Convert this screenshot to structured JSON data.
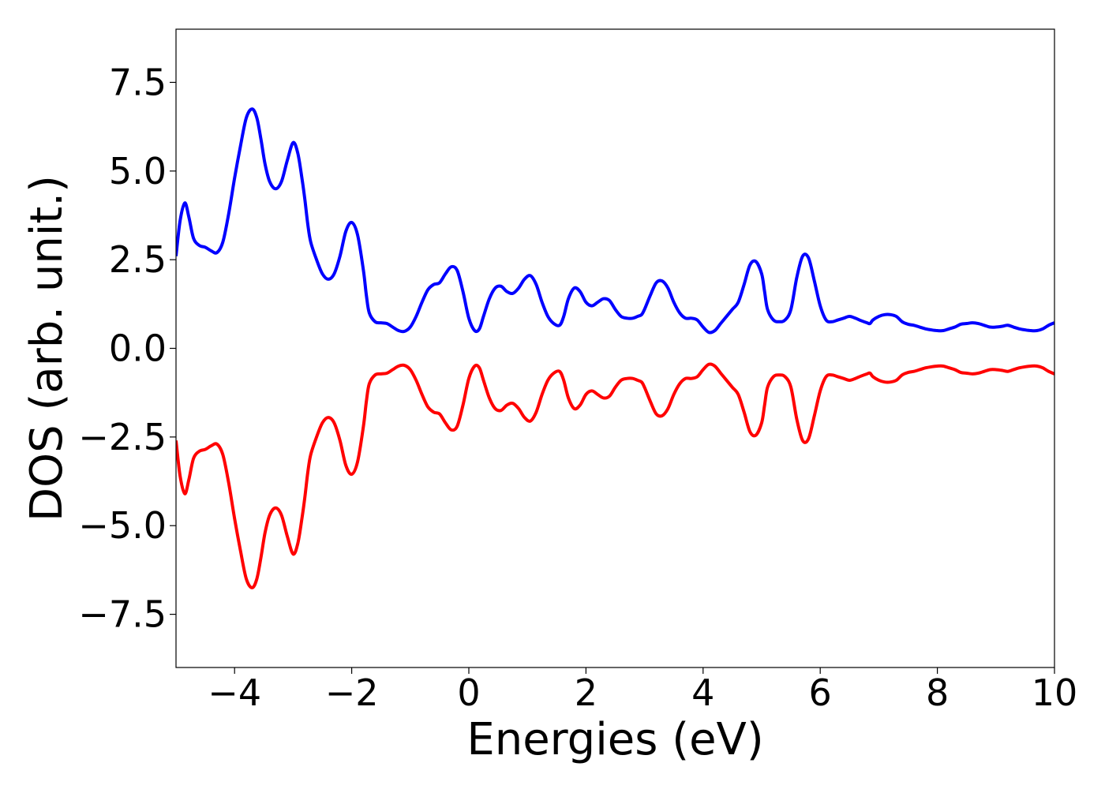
{
  "chart_data": {
    "type": "line",
    "title": "",
    "xlabel": "Energies (eV)",
    "ylabel": "DOS (arb. unit.)",
    "xlim": [
      -5,
      10
    ],
    "ylim": [
      -9,
      9
    ],
    "grid": false,
    "legend": "none",
    "x_ticks": [
      -4,
      -2,
      0,
      2,
      4,
      6,
      8,
      10
    ],
    "x_tick_labels": [
      "−4",
      "−2",
      "0",
      "2",
      "4",
      "6",
      "8",
      "10"
    ],
    "y_ticks": [
      -7.5,
      -5.0,
      -2.5,
      0.0,
      2.5,
      5.0,
      7.5
    ],
    "y_tick_labels": [
      "−7.5",
      "−5.0",
      "−2.5",
      "0.0",
      "2.5",
      "5.0",
      "7.5"
    ],
    "series": [
      {
        "color": "#0000ff",
        "x": [
          -5.0,
          -4.93,
          -4.85,
          -4.78,
          -4.7,
          -4.6,
          -4.5,
          -4.4,
          -4.3,
          -4.2,
          -4.1,
          -4.0,
          -3.9,
          -3.8,
          -3.7,
          -3.62,
          -3.55,
          -3.48,
          -3.4,
          -3.3,
          -3.2,
          -3.1,
          -3.0,
          -2.92,
          -2.85,
          -2.8,
          -2.75,
          -2.7,
          -2.6,
          -2.5,
          -2.4,
          -2.3,
          -2.2,
          -2.1,
          -2.0,
          -1.9,
          -1.8,
          -1.75,
          -1.7,
          -1.6,
          -1.5,
          -1.4,
          -1.3,
          -1.2,
          -1.1,
          -1.0,
          -0.9,
          -0.8,
          -0.7,
          -0.6,
          -0.5,
          -0.4,
          -0.3,
          -0.2,
          -0.1,
          0.0,
          0.1,
          0.18,
          0.25,
          0.35,
          0.45,
          0.55,
          0.65,
          0.75,
          0.85,
          0.95,
          1.05,
          1.15,
          1.25,
          1.35,
          1.45,
          1.55,
          1.62,
          1.7,
          1.8,
          1.9,
          2.0,
          2.1,
          2.2,
          2.3,
          2.4,
          2.5,
          2.6,
          2.7,
          2.8,
          2.88,
          2.95,
          3.0,
          3.1,
          3.2,
          3.3,
          3.4,
          3.5,
          3.6,
          3.7,
          3.8,
          3.9,
          4.0,
          4.1,
          4.2,
          4.3,
          4.4,
          4.5,
          4.6,
          4.7,
          4.8,
          4.9,
          5.0,
          5.05,
          5.1,
          5.2,
          5.3,
          5.4,
          5.5,
          5.6,
          5.7,
          5.8,
          5.9,
          6.0,
          6.1,
          6.2,
          6.3,
          6.4,
          6.5,
          6.6,
          6.7,
          6.8,
          6.85,
          6.9,
          7.0,
          7.1,
          7.2,
          7.3,
          7.4,
          7.5,
          7.6,
          7.7,
          7.8,
          7.9,
          8.0,
          8.1,
          8.2,
          8.3,
          8.4,
          8.5,
          8.6,
          8.7,
          8.8,
          8.9,
          9.0,
          9.1,
          9.2,
          9.3,
          9.4,
          9.5,
          9.6,
          9.7,
          9.8,
          9.9,
          10.0
        ],
        "y": [
          2.6,
          3.6,
          4.1,
          3.7,
          3.1,
          2.9,
          2.85,
          2.75,
          2.7,
          3.0,
          3.8,
          4.8,
          5.7,
          6.5,
          6.75,
          6.5,
          5.9,
          5.2,
          4.7,
          4.5,
          4.7,
          5.3,
          5.8,
          5.5,
          4.8,
          4.2,
          3.5,
          3.0,
          2.5,
          2.1,
          1.95,
          2.1,
          2.6,
          3.3,
          3.55,
          3.2,
          2.2,
          1.5,
          1.0,
          0.75,
          0.72,
          0.7,
          0.6,
          0.5,
          0.48,
          0.6,
          0.9,
          1.3,
          1.65,
          1.8,
          1.85,
          2.1,
          2.3,
          2.2,
          1.6,
          0.85,
          0.5,
          0.55,
          0.9,
          1.4,
          1.7,
          1.75,
          1.6,
          1.55,
          1.7,
          1.95,
          2.05,
          1.8,
          1.3,
          0.9,
          0.7,
          0.65,
          0.9,
          1.4,
          1.7,
          1.6,
          1.3,
          1.2,
          1.3,
          1.4,
          1.35,
          1.1,
          0.9,
          0.85,
          0.85,
          0.9,
          0.95,
          1.1,
          1.5,
          1.85,
          1.9,
          1.7,
          1.3,
          1.0,
          0.85,
          0.85,
          0.8,
          0.6,
          0.45,
          0.5,
          0.7,
          0.9,
          1.1,
          1.3,
          1.8,
          2.35,
          2.45,
          2.1,
          1.6,
          1.1,
          0.8,
          0.75,
          0.8,
          1.1,
          2.0,
          2.6,
          2.55,
          1.9,
          1.2,
          0.8,
          0.75,
          0.8,
          0.85,
          0.9,
          0.85,
          0.78,
          0.72,
          0.7,
          0.8,
          0.9,
          0.95,
          0.95,
          0.9,
          0.75,
          0.68,
          0.65,
          0.6,
          0.55,
          0.52,
          0.5,
          0.5,
          0.55,
          0.6,
          0.68,
          0.7,
          0.72,
          0.7,
          0.65,
          0.6,
          0.6,
          0.62,
          0.65,
          0.6,
          0.55,
          0.52,
          0.5,
          0.5,
          0.55,
          0.65,
          0.72
        ]
      },
      {
        "color": "#ff0000",
        "x": [
          -5.0,
          -4.93,
          -4.85,
          -4.78,
          -4.7,
          -4.6,
          -4.5,
          -4.4,
          -4.3,
          -4.2,
          -4.1,
          -4.0,
          -3.9,
          -3.8,
          -3.7,
          -3.62,
          -3.55,
          -3.48,
          -3.4,
          -3.3,
          -3.2,
          -3.1,
          -3.0,
          -2.92,
          -2.85,
          -2.8,
          -2.75,
          -2.7,
          -2.6,
          -2.5,
          -2.4,
          -2.3,
          -2.2,
          -2.1,
          -2.0,
          -1.9,
          -1.8,
          -1.75,
          -1.7,
          -1.6,
          -1.5,
          -1.4,
          -1.3,
          -1.2,
          -1.1,
          -1.0,
          -0.9,
          -0.8,
          -0.7,
          -0.6,
          -0.5,
          -0.4,
          -0.3,
          -0.2,
          -0.1,
          0.0,
          0.1,
          0.18,
          0.25,
          0.35,
          0.45,
          0.55,
          0.65,
          0.75,
          0.85,
          0.95,
          1.05,
          1.15,
          1.25,
          1.35,
          1.45,
          1.55,
          1.62,
          1.7,
          1.8,
          1.9,
          2.0,
          2.1,
          2.2,
          2.3,
          2.4,
          2.5,
          2.6,
          2.7,
          2.8,
          2.88,
          2.95,
          3.0,
          3.1,
          3.2,
          3.3,
          3.4,
          3.5,
          3.6,
          3.7,
          3.8,
          3.9,
          4.0,
          4.1,
          4.2,
          4.3,
          4.4,
          4.5,
          4.6,
          4.7,
          4.8,
          4.9,
          5.0,
          5.05,
          5.1,
          5.2,
          5.3,
          5.4,
          5.5,
          5.6,
          5.7,
          5.8,
          5.9,
          6.0,
          6.1,
          6.2,
          6.3,
          6.4,
          6.5,
          6.6,
          6.7,
          6.8,
          6.85,
          6.9,
          7.0,
          7.1,
          7.2,
          7.3,
          7.4,
          7.5,
          7.6,
          7.7,
          7.8,
          7.9,
          8.0,
          8.1,
          8.2,
          8.3,
          8.4,
          8.5,
          8.6,
          8.7,
          8.8,
          8.9,
          9.0,
          9.1,
          9.2,
          9.3,
          9.4,
          9.5,
          9.6,
          9.7,
          9.8,
          9.9,
          10.0
        ],
        "y": [
          -2.6,
          -3.6,
          -4.1,
          -3.7,
          -3.1,
          -2.9,
          -2.85,
          -2.75,
          -2.7,
          -3.0,
          -3.8,
          -4.8,
          -5.7,
          -6.5,
          -6.75,
          -6.5,
          -5.9,
          -5.2,
          -4.7,
          -4.5,
          -4.7,
          -5.3,
          -5.8,
          -5.5,
          -4.8,
          -4.2,
          -3.5,
          -3.0,
          -2.5,
          -2.1,
          -1.95,
          -2.1,
          -2.6,
          -3.3,
          -3.55,
          -3.2,
          -2.2,
          -1.5,
          -1.0,
          -0.75,
          -0.72,
          -0.7,
          -0.6,
          -0.5,
          -0.48,
          -0.6,
          -0.9,
          -1.3,
          -1.65,
          -1.8,
          -1.85,
          -2.1,
          -2.3,
          -2.2,
          -1.6,
          -0.85,
          -0.5,
          -0.55,
          -0.9,
          -1.4,
          -1.7,
          -1.75,
          -1.6,
          -1.55,
          -1.7,
          -1.95,
          -2.05,
          -1.8,
          -1.3,
          -0.9,
          -0.7,
          -0.65,
          -0.9,
          -1.4,
          -1.7,
          -1.6,
          -1.3,
          -1.2,
          -1.3,
          -1.4,
          -1.35,
          -1.1,
          -0.9,
          -0.85,
          -0.85,
          -0.9,
          -0.95,
          -1.1,
          -1.5,
          -1.85,
          -1.9,
          -1.7,
          -1.3,
          -1.0,
          -0.85,
          -0.85,
          -0.8,
          -0.6,
          -0.45,
          -0.5,
          -0.7,
          -0.9,
          -1.1,
          -1.3,
          -1.8,
          -2.35,
          -2.45,
          -2.1,
          -1.6,
          -1.1,
          -0.8,
          -0.75,
          -0.8,
          -1.1,
          -2.0,
          -2.6,
          -2.55,
          -1.9,
          -1.2,
          -0.8,
          -0.75,
          -0.8,
          -0.85,
          -0.9,
          -0.85,
          -0.78,
          -0.72,
          -0.7,
          -0.8,
          -0.9,
          -0.95,
          -0.95,
          -0.9,
          -0.75,
          -0.68,
          -0.65,
          -0.6,
          -0.55,
          -0.52,
          -0.5,
          -0.5,
          -0.55,
          -0.6,
          -0.68,
          -0.7,
          -0.72,
          -0.7,
          -0.65,
          -0.6,
          -0.6,
          -0.62,
          -0.65,
          -0.6,
          -0.55,
          -0.52,
          -0.5,
          -0.5,
          -0.55,
          -0.65,
          -0.72
        ]
      }
    ]
  }
}
